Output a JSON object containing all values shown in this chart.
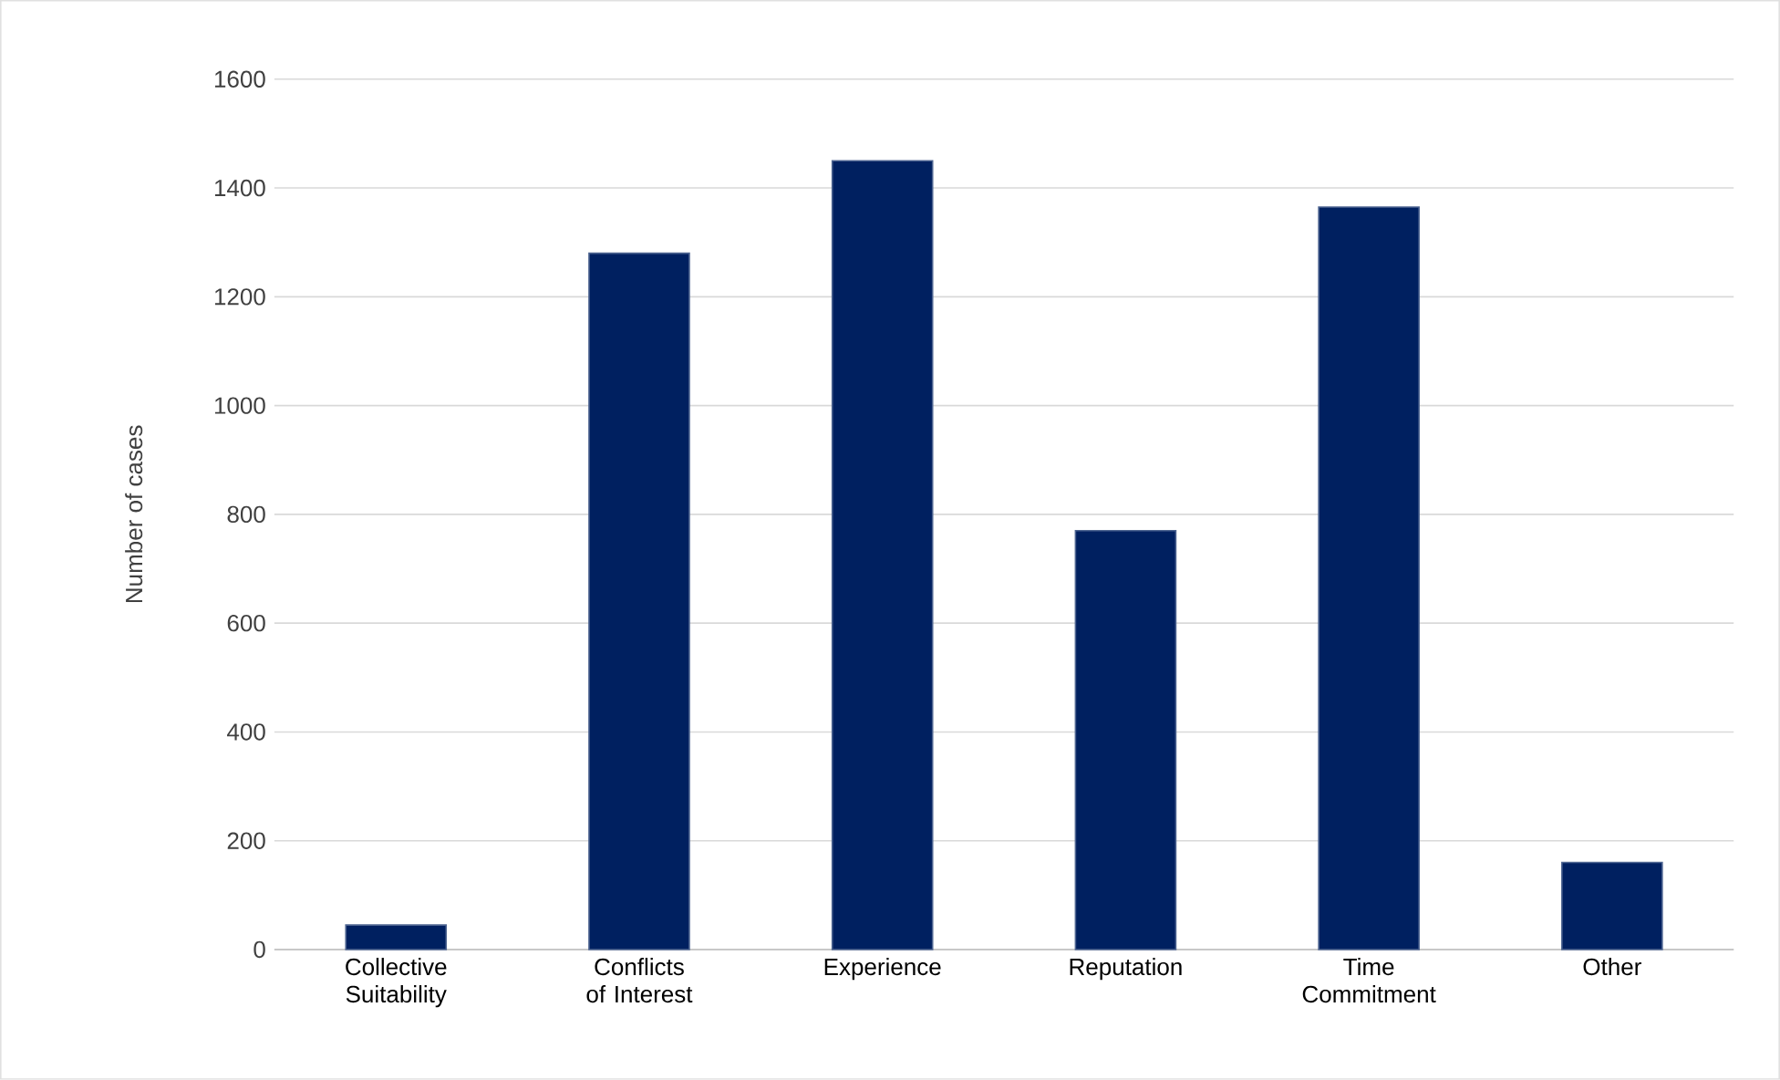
{
  "chart_data": {
    "type": "bar",
    "ylabel": "Number of cases",
    "categories": [
      "Collective Suitability",
      "Conflicts of Interest",
      "Experience",
      "Reputation",
      "Time Commitment",
      "Other"
    ],
    "values": [
      45,
      1280,
      1450,
      770,
      1365,
      160
    ],
    "color": "#002060",
    "ylim": [
      0,
      1600
    ],
    "yticks": [
      0,
      200,
      400,
      600,
      800,
      1000,
      1200,
      1400,
      1600
    ],
    "grid": "y"
  }
}
